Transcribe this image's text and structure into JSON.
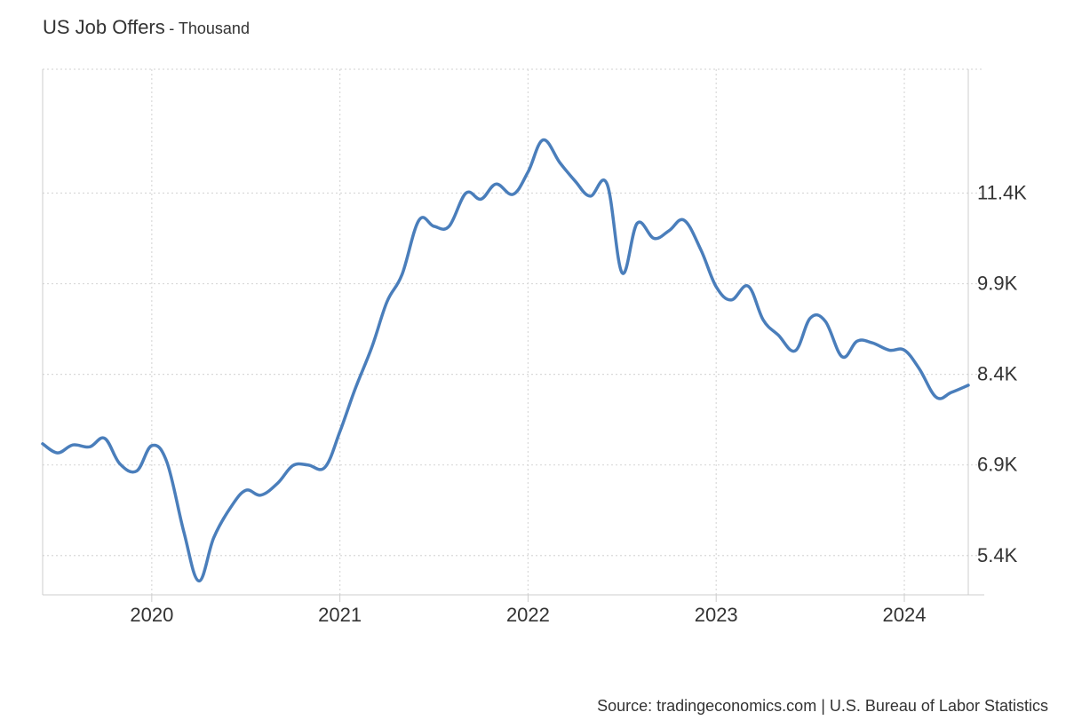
{
  "title": "US Job Offers",
  "subtitle": "- Thousand",
  "source": "Source: tradingeconomics.com | U.S. Bureau of Labor Statistics",
  "colors": {
    "line": "#4a7ebb",
    "grid": "#d9d9d9",
    "axis": "#cccccc",
    "text": "#333333"
  },
  "chart_data": {
    "type": "line",
    "title": "US Job Offers",
    "subtitle": "- Thousand",
    "xlabel": "",
    "ylabel": "",
    "x_ticks": [
      2020,
      2021,
      2022,
      2023,
      2024
    ],
    "x_tick_labels": [
      "2020",
      "2021",
      "2022",
      "2023",
      "2024"
    ],
    "y_ticks": [
      5400,
      6900,
      8400,
      9900,
      11400
    ],
    "y_tick_labels": [
      "5.4K",
      "6.9K",
      "8.4K",
      "9.9K",
      "11.4K"
    ],
    "y_axis_side": "right",
    "grid": true,
    "xlim": [
      2019.42,
      2024.34
    ],
    "ylim": [
      4750,
      13450
    ],
    "series": [
      {
        "x": [
          2019.42,
          2019.5,
          2019.58,
          2019.67,
          2019.75,
          2019.83,
          2019.92,
          2020.0,
          2020.08,
          2020.17,
          2020.25,
          2020.33,
          2020.42,
          2020.5,
          2020.58,
          2020.67,
          2020.75,
          2020.83,
          2020.92,
          2021.0,
          2021.08,
          2021.17,
          2021.25,
          2021.33,
          2021.42,
          2021.5,
          2021.58,
          2021.67,
          2021.75,
          2021.83,
          2021.92,
          2022.0,
          2022.08,
          2022.17,
          2022.25,
          2022.33,
          2022.42,
          2022.5,
          2022.58,
          2022.67,
          2022.75,
          2022.83,
          2022.92,
          2023.0,
          2023.08,
          2023.17,
          2023.25,
          2023.33,
          2023.42,
          2023.5,
          2023.58,
          2023.67,
          2023.75,
          2023.83,
          2023.92,
          2024.0,
          2024.08,
          2024.17,
          2024.25,
          2024.34
        ],
        "y": [
          7250,
          7100,
          7230,
          7200,
          7340,
          6920,
          6800,
          7220,
          6950,
          5800,
          4980,
          5700,
          6200,
          6480,
          6400,
          6600,
          6890,
          6900,
          6860,
          7450,
          8150,
          8850,
          9600,
          10050,
          10950,
          10850,
          10850,
          11400,
          11300,
          11550,
          11380,
          11750,
          12280,
          11900,
          11600,
          11350,
          11550,
          10080,
          10900,
          10650,
          10780,
          10950,
          10450,
          9850,
          9630,
          9860,
          9300,
          9050,
          8790,
          9330,
          9280,
          8690,
          8950,
          8920,
          8800,
          8800,
          8490,
          8020,
          8100,
          8220
        ]
      }
    ]
  }
}
